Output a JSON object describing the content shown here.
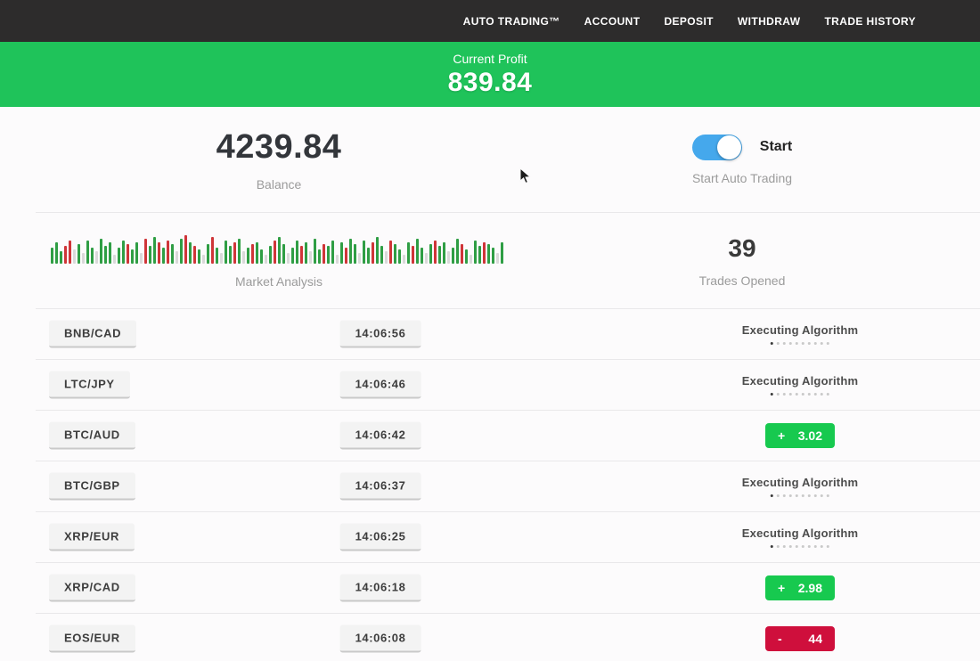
{
  "colors": {
    "nav_bg": "#2d2c2c",
    "green": "#1fc35a",
    "badge_green": "#17c94f",
    "badge_red": "#cf0f3c",
    "blue": "#45a8ec"
  },
  "nav": {
    "items": [
      {
        "label": "AUTO TRADING™"
      },
      {
        "label": "ACCOUNT"
      },
      {
        "label": "DEPOSIT"
      },
      {
        "label": "WITHDRAW"
      },
      {
        "label": "TRADE HISTORY"
      }
    ]
  },
  "profit_banner": {
    "label": "Current Profit",
    "value": "839.84"
  },
  "stats": {
    "balance": {
      "value": "4239.84",
      "label": "Balance"
    },
    "auto_trading": {
      "toggle_state": "on",
      "toggle_text": "Start",
      "label": "Start Auto Trading"
    },
    "market_analysis": {
      "label": "Market Analysis"
    },
    "trades_opened": {
      "value": "39",
      "label": "Trades Opened"
    }
  },
  "chart_data": {
    "type": "bar",
    "title": "Market Analysis",
    "note": "dense candle-style strip; h = bar height px, c = g(reen)/r(ed)/l(ight-gray)",
    "bars": [
      [
        18,
        "g"
      ],
      [
        24,
        "g"
      ],
      [
        14,
        "g"
      ],
      [
        20,
        "r"
      ],
      [
        26,
        "r"
      ],
      [
        16,
        "l"
      ],
      [
        22,
        "g"
      ],
      [
        12,
        "l"
      ],
      [
        26,
        "g"
      ],
      [
        18,
        "g"
      ],
      [
        14,
        "l"
      ],
      [
        28,
        "g"
      ],
      [
        20,
        "g"
      ],
      [
        24,
        "g"
      ],
      [
        10,
        "l"
      ],
      [
        18,
        "g"
      ],
      [
        26,
        "g"
      ],
      [
        22,
        "r"
      ],
      [
        16,
        "g"
      ],
      [
        24,
        "g"
      ],
      [
        12,
        "l"
      ],
      [
        28,
        "r"
      ],
      [
        20,
        "g"
      ],
      [
        30,
        "g"
      ],
      [
        24,
        "r"
      ],
      [
        18,
        "g"
      ],
      [
        26,
        "r"
      ],
      [
        22,
        "g"
      ],
      [
        14,
        "l"
      ],
      [
        28,
        "g"
      ],
      [
        32,
        "r"
      ],
      [
        24,
        "g"
      ],
      [
        20,
        "r"
      ],
      [
        16,
        "g"
      ],
      [
        10,
        "l"
      ],
      [
        22,
        "g"
      ],
      [
        30,
        "r"
      ],
      [
        18,
        "g"
      ],
      [
        12,
        "l"
      ],
      [
        26,
        "g"
      ],
      [
        20,
        "g"
      ],
      [
        24,
        "r"
      ],
      [
        28,
        "g"
      ],
      [
        14,
        "l"
      ],
      [
        18,
        "g"
      ],
      [
        22,
        "r"
      ],
      [
        24,
        "g"
      ],
      [
        16,
        "g"
      ],
      [
        10,
        "l"
      ],
      [
        20,
        "g"
      ],
      [
        26,
        "r"
      ],
      [
        30,
        "g"
      ],
      [
        22,
        "g"
      ],
      [
        12,
        "l"
      ],
      [
        18,
        "g"
      ],
      [
        26,
        "g"
      ],
      [
        20,
        "r"
      ],
      [
        24,
        "g"
      ],
      [
        14,
        "l"
      ],
      [
        28,
        "g"
      ],
      [
        16,
        "g"
      ],
      [
        22,
        "r"
      ],
      [
        20,
        "g"
      ],
      [
        26,
        "g"
      ],
      [
        10,
        "l"
      ],
      [
        24,
        "g"
      ],
      [
        18,
        "r"
      ],
      [
        28,
        "g"
      ],
      [
        22,
        "g"
      ],
      [
        12,
        "l"
      ],
      [
        26,
        "g"
      ],
      [
        18,
        "g"
      ],
      [
        24,
        "r"
      ],
      [
        30,
        "g"
      ],
      [
        20,
        "g"
      ],
      [
        14,
        "l"
      ],
      [
        26,
        "r"
      ],
      [
        22,
        "g"
      ],
      [
        16,
        "g"
      ],
      [
        10,
        "l"
      ],
      [
        24,
        "g"
      ],
      [
        20,
        "r"
      ],
      [
        28,
        "g"
      ],
      [
        18,
        "g"
      ],
      [
        12,
        "l"
      ],
      [
        22,
        "g"
      ],
      [
        26,
        "r"
      ],
      [
        20,
        "g"
      ],
      [
        24,
        "g"
      ],
      [
        14,
        "l"
      ],
      [
        18,
        "g"
      ],
      [
        28,
        "g"
      ],
      [
        22,
        "r"
      ],
      [
        16,
        "g"
      ],
      [
        10,
        "l"
      ],
      [
        26,
        "g"
      ],
      [
        20,
        "g"
      ],
      [
        24,
        "r"
      ],
      [
        22,
        "g"
      ],
      [
        18,
        "g"
      ],
      [
        12,
        "l"
      ],
      [
        24,
        "g"
      ]
    ]
  },
  "trades": {
    "executing_label": "Executing Algorithm",
    "rows": [
      {
        "pair": "BNB/CAD",
        "time": "14:06:56",
        "status": "executing"
      },
      {
        "pair": "LTC/JPY",
        "time": "14:06:46",
        "status": "executing"
      },
      {
        "pair": "BTC/AUD",
        "time": "14:06:42",
        "status": "profit",
        "sign": "+",
        "amount": "3.02"
      },
      {
        "pair": "BTC/GBP",
        "time": "14:06:37",
        "status": "executing"
      },
      {
        "pair": "XRP/EUR",
        "time": "14:06:25",
        "status": "executing"
      },
      {
        "pair": "XRP/CAD",
        "time": "14:06:18",
        "status": "profit",
        "sign": "+",
        "amount": "2.98"
      },
      {
        "pair": "EOS/EUR",
        "time": "14:06:08",
        "status": "loss",
        "sign": "-",
        "amount": "44"
      }
    ]
  }
}
